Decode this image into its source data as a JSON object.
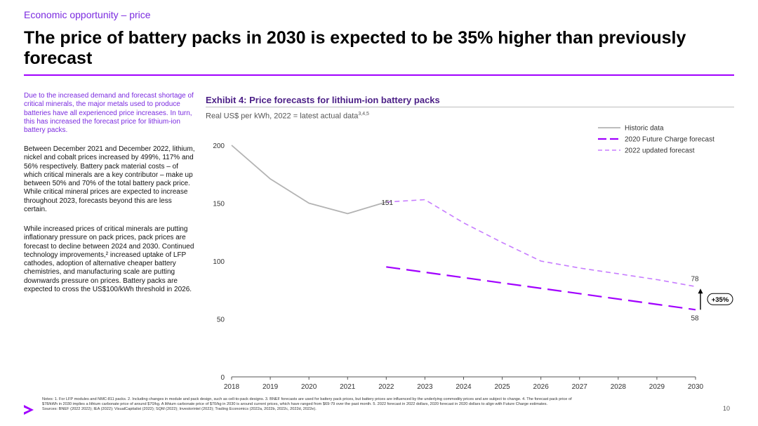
{
  "header": {
    "kicker": "Economic opportunity – price",
    "title": "The price of battery packs in 2030 is expected to be 35% higher than previously forecast"
  },
  "left_text": {
    "lede": "Due to the increased demand and forecast shortage of critical minerals, the major metals used to produce batteries have all experienced price increases. In turn, this has increased the forecast price for lithium-ion battery packs.",
    "paragraph1": "Between December 2021 and December 2022, lithium, nickel and cobalt prices increased by 499%, 117% and 56% respectively. Battery pack material costs – of which critical minerals are a key contributor – make up between 50% and 70% of the total battery pack price. While critical mineral prices are expected to increase throughout 2023, forecasts beyond this are less certain.",
    "paragraph2": "While increased prices of critical minerals are putting inflationary pressure on pack prices, pack prices are forecast to decline between 2024 and 2030. Continued technology improvements,² increased uptake of LFP cathodes, adoption of alternative cheaper battery chemistries, and manufacturing scale are putting downwards pressure on prices. Battery packs are expected to cross the US$100/kWh threshold in 2026."
  },
  "exhibit": {
    "title": "Exhibit 4: Price forecasts for lithium-ion battery packs",
    "subtitle": "Real US$ per kWh, 2022 = latest actual data",
    "subtitle_sup": "3,4,5"
  },
  "chart_data": {
    "type": "line",
    "x": [
      2018,
      2019,
      2020,
      2021,
      2022,
      2023,
      2024,
      2025,
      2026,
      2027,
      2028,
      2029,
      2030
    ],
    "ylim": [
      0,
      200
    ],
    "yticks": [
      0,
      50,
      100,
      150,
      200
    ],
    "series": [
      {
        "name": "Historic data",
        "color": "#b3b3b3",
        "style": "solid",
        "x": [
          2018,
          2019,
          2020,
          2021,
          2022
        ],
        "values": [
          200,
          171,
          150,
          141,
          151
        ]
      },
      {
        "name": "2020 Future Charge forecast",
        "color": "#a100ff",
        "style": "long-dash",
        "x": [
          2022,
          2030
        ],
        "values": [
          95,
          58
        ]
      },
      {
        "name": "2022 updated forecast",
        "color": "#c77dff",
        "style": "dash",
        "x": [
          2022,
          2023,
          2024,
          2025,
          2026,
          2027,
          2028,
          2029,
          2030
        ],
        "values": [
          151,
          153,
          133,
          116,
          100,
          94,
          89,
          84,
          78
        ]
      }
    ],
    "data_labels": [
      {
        "text": "151",
        "x": 2022,
        "y": 151
      },
      {
        "text": "78",
        "x": 2030,
        "y": 78
      },
      {
        "text": "58",
        "x": 2030,
        "y": 58
      }
    ],
    "annotation": "+35%",
    "legend_position": "top-right"
  },
  "footer": {
    "notes": "Notes: 1. For LFP modules and NMC-811 packs. 2. Including changes in module and pack design, such as cell-to-pack designs. 3. BNEF forecasts are used for battery pack prices, but battery prices are influenced by the underlying commodity prices and are subject to change. 4. The forecast pack price of $78/kWh in 2030 implies a lithium carbonate price of around $70/kg. A lithium carbonate price of $70/kg in 2030 is around current prices, which have ranged from $69-79 over the past month. 5. 2022 forecast in 2022 dollars, 2020 forecast in 2020 dollars to align with Future Charge estimates.",
    "sources": "Sources: BNEF (2022 2022); IEA (2022); VisualCapitalist (2022); SQM (2022); Investorintel (2022); Trading Economics (2022a, 2022b, 2022c, 2022d, 2022e).",
    "page_number": "10"
  },
  "colors": {
    "accent": "#a100ff",
    "kicker": "#7b2be0",
    "exhibit_title": "#4b1f86"
  }
}
